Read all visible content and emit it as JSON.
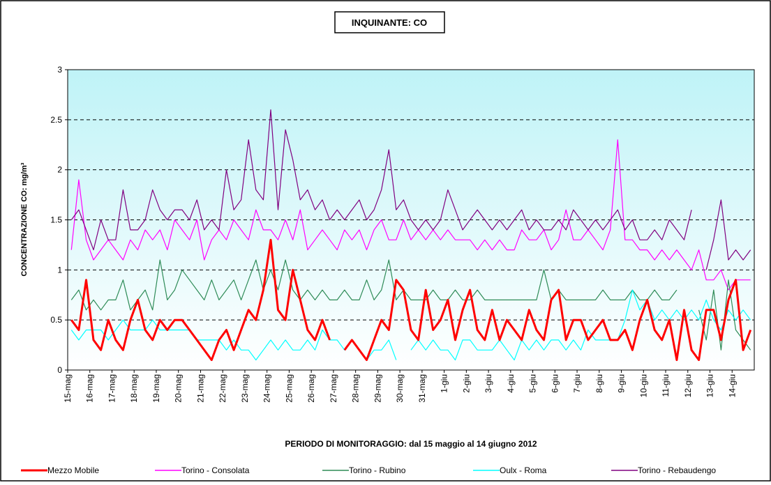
{
  "chart_data": {
    "type": "line",
    "title": "INQUINANTE: CO",
    "y_label": "CONCENTRAZIONE CO: mg/m³",
    "x_label": "PERIODO DI MONITORAGGIO: dal 15 maggio al 14 giugno 2012",
    "ylim": [
      0,
      3
    ],
    "yticks": [
      0,
      0.5,
      1,
      1.5,
      2,
      2.5,
      3
    ],
    "grid": true,
    "categories": [
      "15-mag",
      null,
      null,
      "16-mag",
      null,
      null,
      "17-mag",
      null,
      null,
      "18-mag",
      null,
      null,
      "19-mag",
      null,
      null,
      "20-mag",
      null,
      null,
      "21-mag",
      null,
      null,
      "22-mag",
      null,
      null,
      "23-mag",
      null,
      null,
      "24-mag",
      null,
      null,
      "25-mag",
      null,
      null,
      "26-mag",
      null,
      null,
      "27-mag",
      null,
      null,
      "28-mag",
      null,
      null,
      "29-mag",
      null,
      null,
      "30-mag",
      null,
      null,
      "31-mag",
      null,
      null,
      "1-giu",
      null,
      null,
      "2-giu",
      null,
      null,
      "3-giu",
      null,
      null,
      "4-giu",
      null,
      null,
      "5-giu",
      null,
      null,
      "6-giu",
      null,
      null,
      "7-giu",
      null,
      null,
      "8-giu",
      null,
      null,
      "9-giu",
      null,
      null,
      "10-giu",
      null,
      null,
      "11-giu",
      null,
      null,
      "12-giu",
      null,
      null,
      "13-giu",
      null,
      null,
      "14-giu",
      null,
      null
    ],
    "series": [
      {
        "name": "Mezzo Mobile",
        "color": "#ff0000",
        "values": [
          0.5,
          0.4,
          0.9,
          0.3,
          0.2,
          0.5,
          0.3,
          0.2,
          0.5,
          0.7,
          0.4,
          0.3,
          0.5,
          0.4,
          0.5,
          0.5,
          0.4,
          0.3,
          0.2,
          0.1,
          0.3,
          0.4,
          0.2,
          0.4,
          0.6,
          0.5,
          0.8,
          1.3,
          0.6,
          0.5,
          1.0,
          0.7,
          0.4,
          0.3,
          0.5,
          0.3,
          null,
          0.2,
          0.3,
          0.2,
          0.1,
          0.3,
          0.5,
          0.4,
          0.9,
          0.8,
          0.4,
          0.3,
          0.8,
          0.4,
          0.5,
          0.7,
          0.3,
          0.6,
          0.8,
          0.4,
          0.3,
          0.6,
          0.3,
          0.5,
          0.4,
          0.3,
          0.6,
          0.4,
          0.3,
          0.7,
          0.8,
          0.3,
          0.5,
          0.5,
          0.3,
          0.4,
          0.5,
          0.3,
          0.3,
          0.4,
          0.2,
          0.5,
          0.7,
          0.4,
          0.3,
          0.5,
          0.1,
          0.6,
          0.2,
          0.1,
          0.6,
          0.6,
          0.3,
          0.7,
          0.9,
          0.2,
          0.4
        ]
      },
      {
        "name": "Torino - Consolata",
        "color": "#ff00ff",
        "values": [
          1.2,
          1.9,
          1.3,
          1.1,
          1.2,
          1.3,
          1.2,
          1.1,
          1.3,
          1.2,
          1.4,
          1.3,
          1.4,
          1.2,
          1.5,
          1.4,
          1.3,
          1.5,
          1.1,
          1.3,
          1.4,
          1.3,
          1.5,
          1.4,
          1.3,
          1.6,
          1.4,
          1.4,
          1.3,
          1.5,
          1.3,
          1.6,
          1.2,
          1.3,
          1.4,
          1.3,
          1.2,
          1.4,
          1.3,
          1.4,
          1.2,
          1.4,
          1.5,
          1.3,
          1.3,
          1.5,
          1.3,
          1.4,
          1.3,
          1.4,
          1.3,
          1.4,
          1.3,
          1.3,
          1.3,
          1.2,
          1.3,
          1.2,
          1.3,
          1.2,
          1.2,
          1.4,
          1.3,
          1.3,
          1.4,
          1.2,
          1.3,
          1.6,
          1.3,
          1.3,
          1.4,
          1.3,
          1.2,
          1.4,
          2.3,
          1.3,
          1.3,
          1.2,
          1.2,
          1.1,
          1.2,
          1.1,
          1.2,
          1.1,
          1.0,
          1.2,
          0.9,
          0.9,
          1.0,
          0.8,
          0.9,
          0.9,
          0.9
        ]
      },
      {
        "name": "Torino - Rubino",
        "color": "#2e8b57",
        "values": [
          0.7,
          0.8,
          0.6,
          0.7,
          0.6,
          0.7,
          0.7,
          0.9,
          0.6,
          0.7,
          0.8,
          0.6,
          1.1,
          0.7,
          0.8,
          1.0,
          0.9,
          0.8,
          0.7,
          0.9,
          0.7,
          0.8,
          0.9,
          0.7,
          0.9,
          1.1,
          0.8,
          1.0,
          0.8,
          1.1,
          0.8,
          0.7,
          0.8,
          0.7,
          0.8,
          0.7,
          0.7,
          0.8,
          0.7,
          0.7,
          0.9,
          0.7,
          0.8,
          1.1,
          0.7,
          0.8,
          0.7,
          0.7,
          0.7,
          0.8,
          0.7,
          0.7,
          0.8,
          0.7,
          0.7,
          0.8,
          0.7,
          0.7,
          0.7,
          0.7,
          0.7,
          0.7,
          0.7,
          0.7,
          1.0,
          0.7,
          0.8,
          0.7,
          0.7,
          0.7,
          0.7,
          0.7,
          0.8,
          0.7,
          0.7,
          0.7,
          0.8,
          0.7,
          0.7,
          0.8,
          0.7,
          0.7,
          0.8,
          null,
          null,
          0.6,
          0.3,
          0.8,
          0.2,
          0.9,
          0.4,
          0.3,
          0.2
        ]
      },
      {
        "name": "Oulx - Roma",
        "color": "#00ffff",
        "values": [
          0.4,
          0.3,
          0.4,
          0.4,
          0.4,
          0.3,
          0.4,
          0.5,
          0.4,
          0.4,
          0.4,
          0.5,
          0.4,
          0.4,
          0.4,
          0.4,
          0.4,
          0.3,
          0.3,
          0.3,
          0.3,
          0.2,
          0.3,
          0.2,
          0.2,
          0.1,
          0.2,
          0.3,
          0.2,
          0.3,
          0.2,
          0.2,
          0.3,
          0.2,
          0.4,
          0.3,
          0.3,
          0.2,
          0.3,
          0.2,
          0.1,
          0.2,
          0.2,
          0.3,
          0.1,
          null,
          0.2,
          0.3,
          0.2,
          0.3,
          0.2,
          0.2,
          0.1,
          0.3,
          0.3,
          0.2,
          0.2,
          0.2,
          0.3,
          0.2,
          0.1,
          0.3,
          0.2,
          0.3,
          0.2,
          0.3,
          0.3,
          0.2,
          0.3,
          0.2,
          0.4,
          0.3,
          0.3,
          0.3,
          0.3,
          0.5,
          0.8,
          0.6,
          0.7,
          0.5,
          0.6,
          0.5,
          0.6,
          0.5,
          0.6,
          0.5,
          0.7,
          0.5,
          0.4,
          0.6,
          0.5,
          0.6,
          0.5
        ]
      },
      {
        "name": "Torino - Rebaudengo",
        "color": "#800080",
        "values": [
          1.5,
          1.6,
          1.4,
          1.2,
          1.5,
          1.3,
          1.3,
          1.8,
          1.4,
          1.4,
          1.5,
          1.8,
          1.6,
          1.5,
          1.6,
          1.6,
          1.5,
          1.7,
          1.4,
          1.5,
          1.4,
          2.0,
          1.6,
          1.7,
          2.3,
          1.8,
          1.7,
          2.6,
          1.6,
          2.4,
          2.1,
          1.7,
          1.8,
          1.6,
          1.7,
          1.5,
          1.6,
          1.5,
          1.6,
          1.7,
          1.5,
          1.6,
          1.8,
          2.2,
          1.6,
          1.7,
          1.5,
          1.4,
          1.5,
          1.4,
          1.5,
          1.8,
          1.6,
          1.4,
          1.5,
          1.6,
          1.5,
          1.4,
          1.5,
          1.4,
          1.5,
          1.6,
          1.4,
          1.5,
          1.4,
          1.4,
          1.5,
          1.4,
          1.6,
          1.5,
          1.4,
          1.5,
          1.4,
          1.5,
          1.6,
          1.4,
          1.5,
          1.3,
          1.3,
          1.4,
          1.3,
          1.5,
          1.4,
          1.3,
          1.6,
          null,
          1.0,
          1.3,
          1.7,
          1.1,
          1.2,
          1.1,
          1.2
        ]
      }
    ]
  }
}
